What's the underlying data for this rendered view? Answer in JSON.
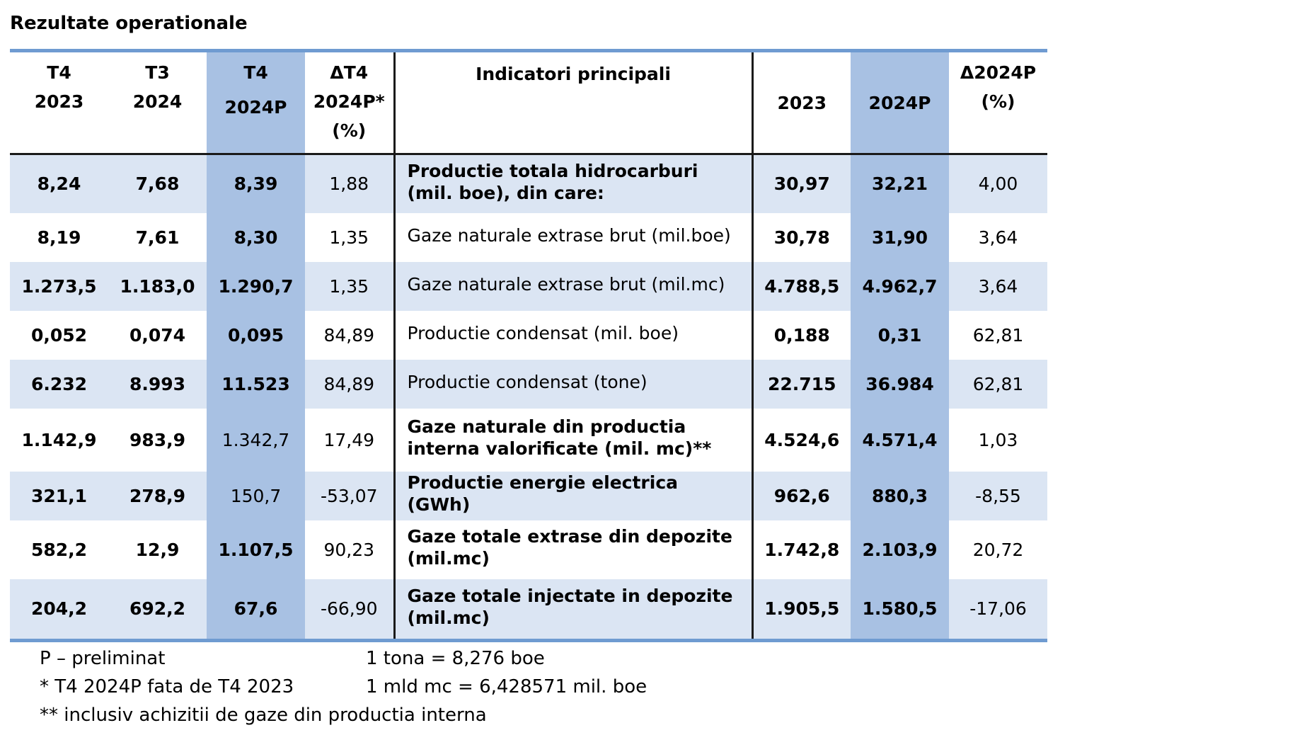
{
  "title": "Rezultate operationale",
  "columns": {
    "q4_2023": [
      "T4",
      "2023"
    ],
    "q3_2024": [
      "T3",
      "2024"
    ],
    "q4_2024p": [
      "T4",
      "2024P"
    ],
    "delta_q4": [
      "ΔT4",
      "2024P*",
      "(%)"
    ],
    "indicator": "Indicatori principali",
    "y2023": "2023",
    "y2024p": "2024P",
    "delta_y": [
      "Δ2024P",
      "(%)"
    ]
  },
  "colors": {
    "highlight": "#a8c1e3",
    "band": "#dbe5f3",
    "rule": "#6f9bd1"
  },
  "rows": [
    {
      "q4_2023": "8,24",
      "q3_2024": "7,68",
      "q4_2024p": "8,39",
      "delta_q4": "1,88",
      "indicator": "Productie totala hidrocarburi (mil. boe), din care:",
      "y2023": "30,97",
      "y2024p": "32,21",
      "delta_y": "4,00",
      "bold_indicator": true,
      "bold_q4p": true
    },
    {
      "q4_2023": "8,19",
      "q3_2024": "7,61",
      "q4_2024p": "8,30",
      "delta_q4": "1,35",
      "indicator": "Gaze naturale extrase brut (mil.boe)",
      "y2023": "30,78",
      "y2024p": "31,90",
      "delta_y": "3,64",
      "bold_indicator": false,
      "bold_q4p": true
    },
    {
      "q4_2023": "1.273,5",
      "q3_2024": "1.183,0",
      "q4_2024p": "1.290,7",
      "delta_q4": "1,35",
      "indicator": "Gaze naturale extrase brut (mil.mc)",
      "y2023": "4.788,5",
      "y2024p": "4.962,7",
      "delta_y": "3,64",
      "bold_indicator": false,
      "bold_q4p": true
    },
    {
      "q4_2023": "0,052",
      "q3_2024": "0,074",
      "q4_2024p": "0,095",
      "delta_q4": "84,89",
      "indicator": "Productie condensat (mil. boe)",
      "y2023": "0,188",
      "y2024p": "0,31",
      "delta_y": "62,81",
      "bold_indicator": false,
      "bold_q4p": true
    },
    {
      "q4_2023": "6.232",
      "q3_2024": "8.993",
      "q4_2024p": "11.523",
      "delta_q4": "84,89",
      "indicator": "Productie condensat (tone)",
      "y2023": "22.715",
      "y2024p": "36.984",
      "delta_y": "62,81",
      "bold_indicator": false,
      "bold_q4p": true
    },
    {
      "q4_2023": "1.142,9",
      "q3_2024": "983,9",
      "q4_2024p": "1.342,7",
      "delta_q4": "17,49",
      "indicator": "Gaze naturale din productia interna valorificate (mil. mc)**",
      "y2023": "4.524,6",
      "y2024p": "4.571,4",
      "delta_y": "1,03",
      "bold_indicator": true,
      "bold_q4p": false
    },
    {
      "q4_2023": "321,1",
      "q3_2024": "278,9",
      "q4_2024p": "150,7",
      "delta_q4": "-53,07",
      "indicator": "Productie energie electrica (GWh)",
      "y2023": "962,6",
      "y2024p": "880,3",
      "delta_y": "-8,55",
      "bold_indicator": true,
      "bold_q4p": false
    },
    {
      "q4_2023": "582,2",
      "q3_2024": "12,9",
      "q4_2024p": "1.107,5",
      "delta_q4": "90,23",
      "indicator": "Gaze totale extrase din depozite (mil.mc)",
      "y2023": "1.742,8",
      "y2024p": "2.103,9",
      "delta_y": "20,72",
      "bold_indicator": true,
      "bold_q4p": true
    },
    {
      "q4_2023": "204,2",
      "q3_2024": "692,2",
      "q4_2024p": "67,6",
      "delta_q4": "-66,90",
      "indicator": "Gaze totale injectate in depozite (mil.mc)",
      "y2023": "1.905,5",
      "y2024p": "1.580,5",
      "delta_y": "-17,06",
      "bold_indicator": true,
      "bold_q4p": true
    }
  ],
  "notes": {
    "left": [
      "P – preliminat",
      "* T4 2024P fata de T4 2023",
      "** inclusiv achizitii de gaze din productia interna"
    ],
    "right": [
      "1 tona = 8,276 boe",
      "1 mld mc = 6,428571 mil. boe"
    ]
  }
}
